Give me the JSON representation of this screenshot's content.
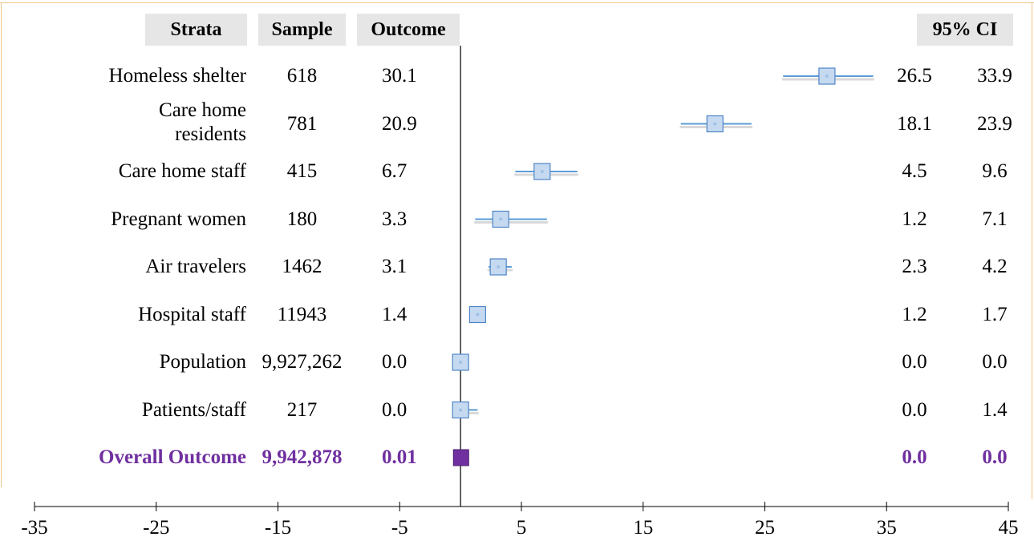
{
  "chart_data": {
    "type": "forest",
    "columns": {
      "strata": "Strata",
      "sample": "Sample",
      "outcome": "Outcome",
      "ci": "95% CI"
    },
    "rows": [
      {
        "strata": "Homeless shelter",
        "sample": "618",
        "outcome": 30.1,
        "outcome_label": "30.1",
        "ci_low": 26.5,
        "ci_high": 33.9,
        "ci_low_label": "26.5",
        "ci_high_label": "33.9"
      },
      {
        "strata": "Care home residents",
        "sample": "781",
        "outcome": 20.9,
        "outcome_label": "20.9",
        "ci_low": 18.1,
        "ci_high": 23.9,
        "ci_low_label": "18.1",
        "ci_high_label": "23.9"
      },
      {
        "strata": "Care home staff",
        "sample": "415",
        "outcome": 6.7,
        "outcome_label": "6.7",
        "ci_low": 4.5,
        "ci_high": 9.6,
        "ci_low_label": "4.5",
        "ci_high_label": "9.6"
      },
      {
        "strata": "Pregnant women",
        "sample": "180",
        "outcome": 3.3,
        "outcome_label": "3.3",
        "ci_low": 1.2,
        "ci_high": 7.1,
        "ci_low_label": "1.2",
        "ci_high_label": "7.1"
      },
      {
        "strata": "Air travelers",
        "sample": "1462",
        "outcome": 3.1,
        "outcome_label": "3.1",
        "ci_low": 2.3,
        "ci_high": 4.2,
        "ci_low_label": "2.3",
        "ci_high_label": "4.2"
      },
      {
        "strata": "Hospital staff",
        "sample": "11943",
        "outcome": 1.4,
        "outcome_label": "1.4",
        "ci_low": 1.2,
        "ci_high": 1.7,
        "ci_low_label": "1.2",
        "ci_high_label": "1.7"
      },
      {
        "strata": "Population",
        "sample": "9,927,262",
        "outcome": 0.0,
        "outcome_label": "0.0",
        "ci_low": 0.0,
        "ci_high": 0.0,
        "ci_low_label": "0.0",
        "ci_high_label": "0.0"
      },
      {
        "strata": "Patients/staff",
        "sample": "217",
        "outcome": 0.0,
        "outcome_label": "0.0",
        "ci_low": 0.0,
        "ci_high": 1.4,
        "ci_low_label": "0.0",
        "ci_high_label": "1.4"
      }
    ],
    "overall": {
      "strata": "Overall Outcome",
      "sample": "9,942,878",
      "outcome": 0.01,
      "outcome_label": "0.01",
      "ci_low": 0.0,
      "ci_high": 0.0,
      "ci_low_label": "0.0",
      "ci_high_label": "0.0"
    },
    "xlim": [
      -35,
      45
    ],
    "xticks": [
      -35,
      -25,
      -15,
      -5,
      5,
      15,
      25,
      35,
      45
    ],
    "reference_line": 0,
    "colors": {
      "marker_fill": "#c5d9f1",
      "marker_stroke": "#4f86c6",
      "ci_line": "#5b9bd5",
      "overall": "#7030a0",
      "header_bg": "#e6e6e6"
    }
  }
}
